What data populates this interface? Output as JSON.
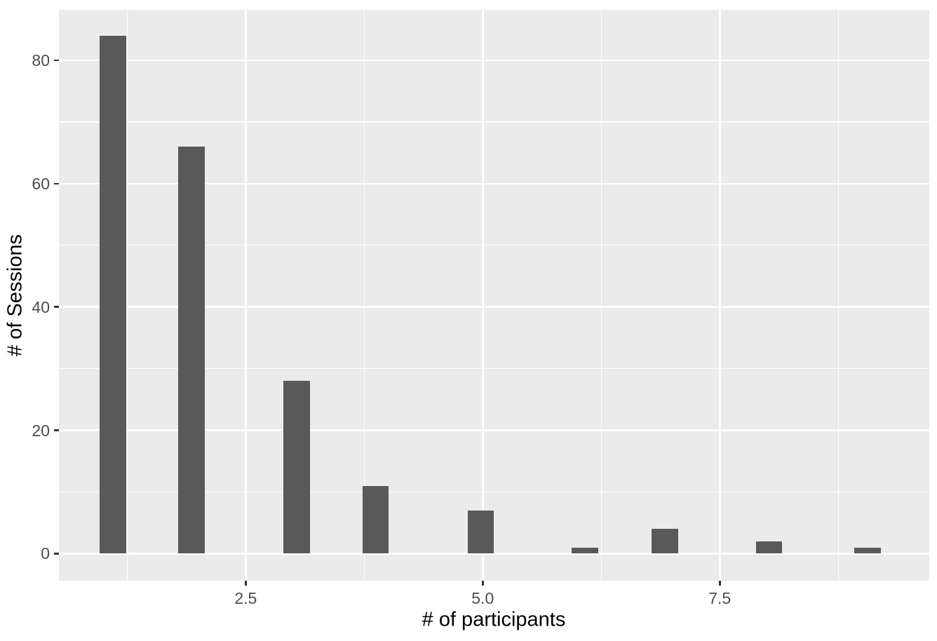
{
  "chart_data": {
    "type": "bar",
    "subtype": "histogram",
    "title": "",
    "xlabel": "# of participants",
    "ylabel": "# of Sessions",
    "categories": [
      1,
      2,
      3,
      4,
      5,
      6,
      7,
      8,
      9
    ],
    "values": [
      84,
      66,
      28,
      11,
      7,
      1,
      4,
      2,
      1
    ],
    "bin_centers": [
      1.1,
      1.93,
      3.04,
      3.87,
      4.98,
      6.08,
      6.92,
      8.02,
      9.06
    ],
    "bar_width": 0.28,
    "xlim": [
      0.53,
      9.71
    ],
    "ylim": [
      -4.4,
      88.2
    ],
    "x_ticks": {
      "values": [
        2.5,
        5.0,
        7.5
      ],
      "labels": [
        "2.5",
        "5.0",
        "7.5"
      ]
    },
    "y_ticks": {
      "values": [
        0,
        20,
        40,
        60,
        80
      ],
      "labels": [
        "0",
        "20",
        "40",
        "60",
        "80"
      ]
    },
    "x_minor_gridlines": [
      1.25,
      3.75,
      6.25,
      8.75
    ],
    "y_minor_gridlines": [
      10,
      30,
      50,
      70
    ],
    "grid": true,
    "legend": false,
    "colors": {
      "bar": "#595959",
      "panel_bg": "#EBEBEB",
      "gridline": "#FFFFFF",
      "tick_label": "#4D4D4D",
      "axis_title": "#000000",
      "tick_mark": "#333333",
      "background": "#FFFFFF"
    }
  }
}
